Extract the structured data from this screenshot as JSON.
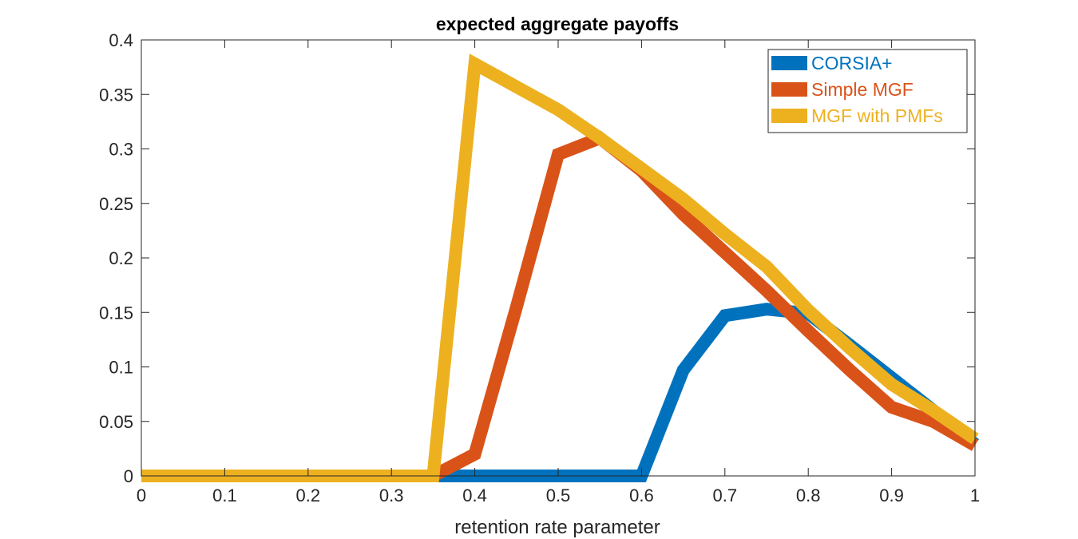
{
  "chart_data": {
    "type": "line",
    "title": "expected aggregate payoffs",
    "xlabel": "retention rate parameter",
    "ylabel": "",
    "xlim": [
      0,
      1
    ],
    "ylim": [
      0,
      0.4
    ],
    "xticks": [
      0,
      0.1,
      0.2,
      0.3,
      0.4,
      0.5,
      0.6,
      0.7,
      0.8,
      0.9,
      1
    ],
    "xtick_labels": [
      "0",
      "0.1",
      "0.2",
      "0.3",
      "0.4",
      "0.5",
      "0.6",
      "0.7",
      "0.8",
      "0.9",
      "1"
    ],
    "yticks": [
      0,
      0.05,
      0.1,
      0.15,
      0.2,
      0.25,
      0.3,
      0.35,
      0.4
    ],
    "ytick_labels": [
      "0",
      "0.05",
      "0.1",
      "0.15",
      "0.2",
      "0.25",
      "0.3",
      "0.35",
      "0.4"
    ],
    "grid": false,
    "legend_position": "top-right",
    "series": [
      {
        "name": "CORSIA+",
        "color": "#0072BD",
        "x": [
          0,
          0.05,
          0.1,
          0.15,
          0.2,
          0.25,
          0.3,
          0.35,
          0.4,
          0.45,
          0.5,
          0.55,
          0.6,
          0.65,
          0.7,
          0.75,
          0.8,
          0.85,
          0.9,
          0.95,
          1
        ],
        "y": [
          0,
          0,
          0,
          0,
          0,
          0,
          0,
          0,
          0,
          0,
          0,
          0,
          0,
          0.097,
          0.147,
          0.153,
          0.149,
          0.12,
          0.09,
          0.06,
          0.029
        ]
      },
      {
        "name": "Simple MGF",
        "color": "#D95319",
        "x": [
          0,
          0.05,
          0.1,
          0.15,
          0.2,
          0.25,
          0.3,
          0.35,
          0.4,
          0.45,
          0.5,
          0.55,
          0.6,
          0.65,
          0.7,
          0.75,
          0.8,
          0.85,
          0.9,
          0.95,
          1
        ],
        "y": [
          0,
          0,
          0,
          0,
          0,
          0,
          0,
          0,
          0.02,
          0.155,
          0.295,
          0.31,
          0.28,
          0.24,
          0.205,
          0.17,
          0.133,
          0.097,
          0.063,
          0.05,
          0.028
        ]
      },
      {
        "name": "MGF with PMFs",
        "color": "#EDB120",
        "x": [
          0,
          0.05,
          0.1,
          0.15,
          0.2,
          0.25,
          0.3,
          0.35,
          0.4,
          0.45,
          0.5,
          0.55,
          0.6,
          0.65,
          0.7,
          0.75,
          0.8,
          0.85,
          0.9,
          0.95,
          1
        ],
        "y": [
          0,
          0,
          0,
          0,
          0,
          0,
          0,
          0,
          0.378,
          0.357,
          0.336,
          0.31,
          0.282,
          0.254,
          0.222,
          0.192,
          0.152,
          0.117,
          0.084,
          0.06,
          0.034
        ]
      }
    ]
  }
}
